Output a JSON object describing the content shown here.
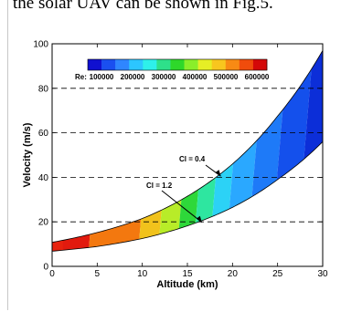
{
  "snippet_text": "the solar UAV can be shown in Fig.5.",
  "chart_data": {
    "type": "area",
    "xlabel": "Altitude (km)",
    "ylabel": "Velocity (m/s)",
    "xlim": [
      0,
      30
    ],
    "ylim": [
      0,
      100
    ],
    "x_ticks": [
      0,
      5,
      10,
      15,
      20,
      25,
      30
    ],
    "y_ticks": [
      0,
      20,
      40,
      60,
      80,
      100
    ],
    "grid": "dashed horizontal at 20, 40, 60, 80",
    "series": [
      {
        "name": "Cl = 0.4",
        "x": [
          0,
          5,
          10,
          15,
          20,
          25,
          30
        ],
        "y": [
          10.8,
          15.2,
          21.5,
          31.5,
          46.0,
          67.5,
          97.0
        ]
      },
      {
        "name": "Cl = 1.2",
        "x": [
          0,
          5,
          10,
          15,
          20,
          25,
          30
        ],
        "y": [
          6.8,
          8.9,
          12.5,
          18.2,
          26.5,
          39.0,
          56.0
        ]
      }
    ],
    "colorbar": {
      "label": "Re:",
      "colors": [
        "#1010d0",
        "#1a4ff0",
        "#2f86ff",
        "#2cc6ff",
        "#2ef0ea",
        "#2ee08a",
        "#2ed82a",
        "#8aee2a",
        "#e6ee25",
        "#f8c61e",
        "#f88a14",
        "#f04c0c",
        "#d40808"
      ],
      "tick_labels": [
        "100000",
        "200000",
        "300000",
        "400000",
        "500000",
        "600000"
      ]
    },
    "re_band_boundaries_km": [
      5.0,
      10.5,
      12.7,
      14.8,
      16.6,
      18.4,
      20.2,
      22.6,
      25.2,
      28.0
    ],
    "annotations": [
      {
        "text": "Cl = 0.4",
        "arrow_to": [
          18.7,
          40.5
        ]
      },
      {
        "text": "Cl = 1.2",
        "arrow_to": [
          16.6,
          19.8
        ]
      }
    ]
  }
}
